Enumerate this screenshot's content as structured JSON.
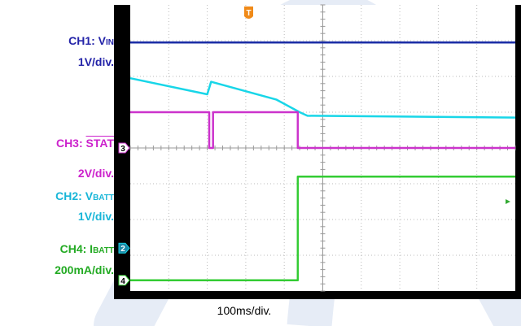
{
  "chart_data": {
    "type": "line",
    "title": "",
    "xlabel": "100ms/div.",
    "ylabel": "",
    "time_per_div_ms": 100,
    "divisions": {
      "x": 10,
      "y": 8
    },
    "grid": true,
    "trigger_marker": "T",
    "channels": [
      {
        "id": "CH1",
        "label_prefix": "CH1: V",
        "label_sub": "IN",
        "scale": "1V/div.",
        "color": "#1a2ca6",
        "marker": "",
        "ref_div": null,
        "points": [
          [
            0,
            6.95
          ],
          [
            10,
            6.95
          ]
        ]
      },
      {
        "id": "CH2",
        "label_prefix": "CH2: V",
        "label_sub": "BATT",
        "scale": "1V/div.",
        "color": "#18d6e8",
        "marker": "2",
        "ref_div": 1.2,
        "points": [
          [
            0,
            5.95
          ],
          [
            2.0,
            5.5
          ],
          [
            2.1,
            5.85
          ],
          [
            3.8,
            5.35
          ],
          [
            4.4,
            5.0
          ],
          [
            4.6,
            4.9
          ],
          [
            10,
            4.85
          ]
        ]
      },
      {
        "id": "CH3",
        "label_prefix": "CH3: ",
        "label_sub": "STAT",
        "label_overline": true,
        "scale": "2V/div.",
        "color": "#cc33cc",
        "marker": "3",
        "ref_div": 4.0,
        "points": [
          [
            0,
            5.0
          ],
          [
            2.05,
            5.0
          ],
          [
            2.05,
            4.0
          ],
          [
            2.15,
            4.0
          ],
          [
            2.15,
            5.0
          ],
          [
            4.35,
            5.0
          ],
          [
            4.35,
            4.0
          ],
          [
            10,
            4.0
          ]
        ]
      },
      {
        "id": "CH4",
        "label_prefix": "CH4: I",
        "label_sub": "BATT",
        "scale": "200mA/div.",
        "color": "#33cc33",
        "marker": "4",
        "ref_div": 0.3,
        "points": [
          [
            0,
            0.3
          ],
          [
            4.35,
            0.3
          ],
          [
            4.35,
            3.2
          ],
          [
            10,
            3.2
          ]
        ]
      }
    ]
  }
}
